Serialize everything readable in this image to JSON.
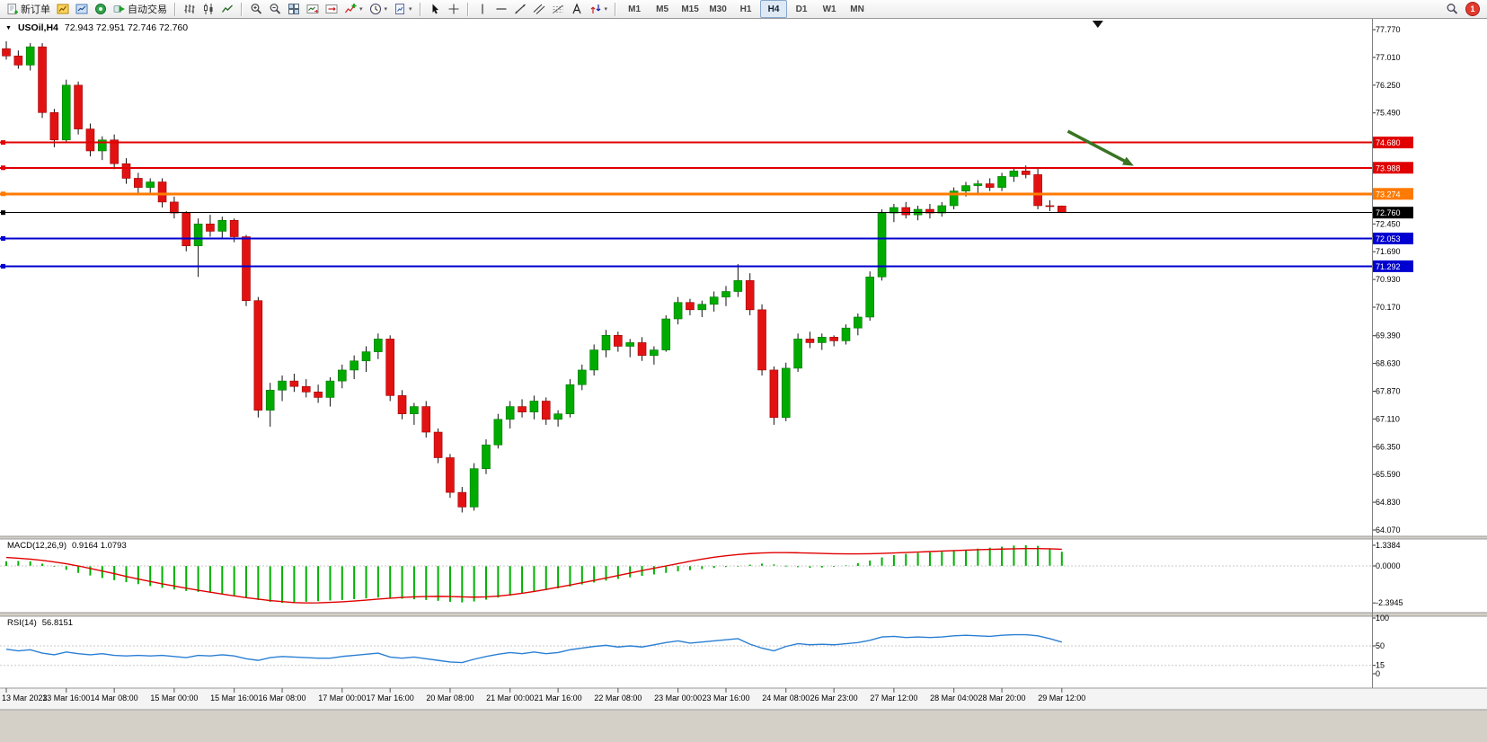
{
  "toolbar": {
    "new_order": "新订单",
    "auto_trading": "自动交易",
    "groups": [
      [
        {
          "name": "new-order-button",
          "icon": "new-order-icon",
          "label_key": "new_order"
        },
        {
          "name": "charts-button",
          "icon": "chart-window-icon"
        },
        {
          "name": "market-watch-button",
          "icon": "market-watch-icon"
        },
        {
          "name": "navigator-button",
          "icon": "navigator-icon"
        },
        {
          "name": "auto-trading-button",
          "icon": "auto-trading-icon",
          "label_key": "auto_trading"
        }
      ],
      [
        {
          "name": "bar-chart-button",
          "icon": "bar-chart-icon"
        },
        {
          "name": "candlestick-chart-button",
          "icon": "candlestick-icon"
        },
        {
          "name": "line-chart-button",
          "icon": "line-chart-icon"
        }
      ],
      [
        {
          "name": "zoom-in-button",
          "icon": "zoom-in-icon"
        },
        {
          "name": "zoom-out-button",
          "icon": "zoom-out-icon"
        },
        {
          "name": "tile-windows-button",
          "icon": "tile-windows-icon"
        },
        {
          "name": "auto-scroll-button",
          "icon": "auto-scroll-icon"
        },
        {
          "name": "chart-shift-button",
          "icon": "chart-shift-icon"
        },
        {
          "name": "indicators-button",
          "icon": "indicators-icon",
          "dropdown": true
        },
        {
          "name": "periods-button",
          "icon": "periods-icon",
          "dropdown": true
        },
        {
          "name": "templates-button",
          "icon": "templates-icon",
          "dropdown": true
        }
      ],
      [
        {
          "name": "cursor-button",
          "icon": "cursor-icon"
        },
        {
          "name": "crosshair-button",
          "icon": "crosshair-icon"
        }
      ],
      [
        {
          "name": "vertical-line-button",
          "icon": "vertical-line-icon"
        },
        {
          "name": "horizontal-line-button",
          "icon": "horizontal-line-icon"
        },
        {
          "name": "trendline-button",
          "icon": "trendline-icon"
        },
        {
          "name": "equidistant-channel-button",
          "icon": "channel-icon"
        },
        {
          "name": "fibonacci-button",
          "icon": "fibonacci-icon"
        },
        {
          "name": "text-button",
          "icon": "text-icon"
        },
        {
          "name": "arrows-button",
          "icon": "arrows-icon",
          "dropdown": true
        }
      ]
    ],
    "timeframes": [
      "M1",
      "M5",
      "M15",
      "M30",
      "H1",
      "H4",
      "D1",
      "W1",
      "MN"
    ],
    "active_timeframe": "H4",
    "badge_count": "1"
  },
  "chart": {
    "symbol_period": "USOil,H4",
    "ohlc_text": "72.943 72.951 72.746 72.760"
  },
  "macd": {
    "label": "MACD(12,26,9)",
    "values": "0.9164 1.0793",
    "ticks": [
      "1.3384",
      "0.0000",
      "-2.3945"
    ]
  },
  "rsi": {
    "label": "RSI(14)",
    "value": "56.8151",
    "ticks": [
      "100",
      "50",
      "15",
      "0"
    ]
  },
  "chart_data": {
    "type": "candlestick",
    "symbol": "USOil",
    "period": "H4",
    "title": "USOil,H4 72.943 72.951 72.746 72.760",
    "last_ohlc": {
      "open": 72.943,
      "high": 72.951,
      "low": 72.746,
      "close": 72.76
    },
    "price_range_visible": [
      64.07,
      77.97
    ],
    "price_axis_ticks": [
      "77.770",
      "77.010",
      "76.250",
      "75.490",
      "72.450",
      "71.690",
      "70.930",
      "70.170",
      "69.390",
      "68.630",
      "67.870",
      "67.110",
      "66.350",
      "65.590",
      "64.830",
      "64.070"
    ],
    "horizontal_lines": [
      {
        "label": "74.680",
        "price": 74.68,
        "color": "#E00000",
        "width": 2
      },
      {
        "label": "73.988",
        "price": 73.988,
        "color": "#E00000",
        "width": 2
      },
      {
        "label": "73.274",
        "price": 73.274,
        "color": "#FF7A00",
        "width": 3
      },
      {
        "label": "72.760",
        "price": 72.76,
        "color": "#000000",
        "width": 1
      },
      {
        "label": "72.053",
        "price": 72.053,
        "color": "#0000D0",
        "width": 2
      },
      {
        "label": "71.292",
        "price": 71.292,
        "color": "#0000D0",
        "width": 2
      }
    ],
    "candles": [
      [
        77.25,
        77.45,
        76.95,
        77.05
      ],
      [
        77.05,
        77.2,
        76.7,
        76.8
      ],
      [
        76.8,
        77.4,
        76.65,
        77.3
      ],
      [
        77.3,
        77.4,
        75.35,
        75.5
      ],
      [
        75.5,
        75.6,
        74.55,
        74.75
      ],
      [
        74.75,
        76.4,
        74.7,
        76.25
      ],
      [
        76.25,
        76.35,
        74.9,
        75.05
      ],
      [
        75.05,
        75.2,
        74.3,
        74.45
      ],
      [
        74.45,
        74.85,
        74.2,
        74.75
      ],
      [
        74.75,
        74.9,
        73.95,
        74.1
      ],
      [
        74.1,
        74.25,
        73.55,
        73.7
      ],
      [
        73.7,
        73.85,
        73.3,
        73.45
      ],
      [
        73.45,
        73.7,
        73.25,
        73.6
      ],
      [
        73.6,
        73.7,
        72.9,
        73.05
      ],
      [
        73.05,
        73.2,
        72.6,
        72.75
      ],
      [
        72.75,
        72.8,
        71.7,
        71.85
      ],
      [
        71.85,
        72.6,
        71.0,
        72.45
      ],
      [
        72.45,
        72.7,
        72.1,
        72.25
      ],
      [
        72.25,
        72.65,
        72.05,
        72.55
      ],
      [
        72.55,
        72.6,
        71.95,
        72.1
      ],
      [
        72.1,
        72.15,
        70.2,
        70.35
      ],
      [
        70.35,
        70.45,
        67.15,
        67.35
      ],
      [
        67.35,
        68.1,
        66.9,
        67.9
      ],
      [
        67.9,
        68.3,
        67.6,
        68.15
      ],
      [
        68.15,
        68.35,
        67.85,
        68.0
      ],
      [
        68.0,
        68.2,
        67.7,
        67.85
      ],
      [
        67.85,
        68.05,
        67.55,
        67.7
      ],
      [
        67.7,
        68.25,
        67.45,
        68.15
      ],
      [
        68.15,
        68.6,
        67.95,
        68.45
      ],
      [
        68.45,
        68.85,
        68.2,
        68.7
      ],
      [
        68.7,
        69.1,
        68.4,
        68.95
      ],
      [
        68.95,
        69.45,
        68.75,
        69.3
      ],
      [
        69.3,
        69.4,
        67.6,
        67.75
      ],
      [
        67.75,
        67.9,
        67.1,
        67.25
      ],
      [
        67.25,
        67.55,
        66.95,
        67.45
      ],
      [
        67.45,
        67.6,
        66.6,
        66.75
      ],
      [
        66.75,
        66.85,
        65.9,
        66.05
      ],
      [
        66.05,
        66.15,
        64.95,
        65.1
      ],
      [
        65.1,
        65.25,
        64.55,
        64.7
      ],
      [
        64.7,
        65.9,
        64.6,
        65.75
      ],
      [
        65.75,
        66.55,
        65.6,
        66.4
      ],
      [
        66.4,
        67.25,
        66.3,
        67.1
      ],
      [
        67.1,
        67.6,
        66.85,
        67.45
      ],
      [
        67.45,
        67.65,
        67.15,
        67.3
      ],
      [
        67.3,
        67.75,
        67.1,
        67.6
      ],
      [
        67.6,
        67.7,
        66.95,
        67.1
      ],
      [
        67.1,
        67.35,
        66.9,
        67.25
      ],
      [
        67.25,
        68.2,
        67.15,
        68.05
      ],
      [
        68.05,
        68.6,
        67.9,
        68.45
      ],
      [
        68.45,
        69.15,
        68.3,
        69.0
      ],
      [
        69.0,
        69.55,
        68.8,
        69.4
      ],
      [
        69.4,
        69.5,
        68.95,
        69.1
      ],
      [
        69.1,
        69.3,
        68.8,
        69.2
      ],
      [
        69.2,
        69.35,
        68.7,
        68.85
      ],
      [
        68.85,
        69.1,
        68.6,
        69.0
      ],
      [
        69.0,
        69.95,
        68.95,
        69.85
      ],
      [
        69.85,
        70.45,
        69.7,
        70.3
      ],
      [
        70.3,
        70.4,
        69.95,
        70.1
      ],
      [
        70.1,
        70.35,
        69.9,
        70.25
      ],
      [
        70.25,
        70.6,
        70.05,
        70.45
      ],
      [
        70.45,
        70.75,
        70.2,
        70.6
      ],
      [
        70.6,
        71.35,
        70.45,
        70.9
      ],
      [
        70.9,
        71.1,
        69.95,
        70.1
      ],
      [
        70.1,
        70.25,
        68.3,
        68.45
      ],
      [
        68.45,
        68.55,
        66.95,
        67.15
      ],
      [
        67.15,
        68.65,
        67.05,
        68.5
      ],
      [
        68.5,
        69.45,
        68.4,
        69.3
      ],
      [
        69.3,
        69.5,
        69.05,
        69.2
      ],
      [
        69.2,
        69.45,
        69.0,
        69.35
      ],
      [
        69.35,
        69.4,
        69.1,
        69.25
      ],
      [
        69.25,
        69.7,
        69.15,
        69.6
      ],
      [
        69.6,
        70.0,
        69.4,
        69.9
      ],
      [
        69.9,
        71.15,
        69.8,
        71.0
      ],
      [
        71.0,
        72.85,
        70.9,
        72.75
      ],
      [
        72.75,
        73.0,
        72.5,
        72.9
      ],
      [
        72.9,
        73.05,
        72.6,
        72.7
      ],
      [
        72.7,
        72.95,
        72.55,
        72.85
      ],
      [
        72.85,
        73.0,
        72.6,
        72.75
      ],
      [
        72.75,
        73.05,
        72.65,
        72.95
      ],
      [
        72.95,
        73.45,
        72.85,
        73.35
      ],
      [
        73.35,
        73.6,
        73.2,
        73.5
      ],
      [
        73.5,
        73.65,
        73.3,
        73.55
      ],
      [
        73.55,
        73.7,
        73.35,
        73.45
      ],
      [
        73.45,
        73.85,
        73.35,
        73.75
      ],
      [
        73.75,
        74.0,
        73.6,
        73.9
      ],
      [
        73.9,
        74.05,
        73.7,
        73.8
      ],
      [
        73.8,
        74.0,
        72.85,
        72.95
      ],
      [
        72.95,
        73.1,
        72.8,
        72.94
      ],
      [
        72.943,
        72.951,
        72.746,
        72.76
      ]
    ],
    "time_ticks": [
      {
        "i": 0,
        "t": "13 Mar 2023"
      },
      {
        "i": 5,
        "t": "13 Mar 16:00"
      },
      {
        "i": 9,
        "t": "14 Mar 08:00"
      },
      {
        "i": 14,
        "t": "15 Mar 00:00"
      },
      {
        "i": 19,
        "t": "15 Mar 16:00"
      },
      {
        "i": 23,
        "t": "16 Mar 08:00"
      },
      {
        "i": 28,
        "t": "17 Mar 00:00"
      },
      {
        "i": 32,
        "t": "17 Mar 16:00"
      },
      {
        "i": 37,
        "t": "20 Mar 08:00"
      },
      {
        "i": 42,
        "t": "21 Mar 00:00"
      },
      {
        "i": 46,
        "t": "21 Mar 16:00"
      },
      {
        "i": 51,
        "t": "22 Mar 08:00"
      },
      {
        "i": 56,
        "t": "23 Mar 00:00"
      },
      {
        "i": 60,
        "t": "23 Mar 16:00"
      },
      {
        "i": 65,
        "t": "24 Mar 08:00"
      },
      {
        "i": 69,
        "t": "26 Mar 23:00"
      },
      {
        "i": 74,
        "t": "27 Mar 12:00"
      },
      {
        "i": 79,
        "t": "28 Mar 04:00"
      },
      {
        "i": 83,
        "t": "28 Mar 20:00"
      },
      {
        "i": 88,
        "t": "29 Mar 12:00"
      }
    ],
    "macd_range": [
      -2.3945,
      1.3384
    ],
    "macd_hist": [
      0.3,
      0.32,
      0.3,
      0.15,
      -0.05,
      -0.25,
      -0.45,
      -0.62,
      -0.78,
      -0.92,
      -1.05,
      -1.18,
      -1.3,
      -1.42,
      -1.52,
      -1.62,
      -1.68,
      -1.74,
      -1.82,
      -1.92,
      -2.05,
      -2.2,
      -2.32,
      -2.39,
      -2.36,
      -2.32,
      -2.28,
      -2.24,
      -2.2,
      -2.15,
      -2.1,
      -2.05,
      -2.08,
      -2.12,
      -2.16,
      -2.2,
      -2.26,
      -2.32,
      -2.36,
      -2.3,
      -2.18,
      -2.05,
      -1.92,
      -1.8,
      -1.68,
      -1.56,
      -1.45,
      -1.33,
      -1.2,
      -1.07,
      -0.95,
      -0.84,
      -0.74,
      -0.64,
      -0.55,
      -0.45,
      -0.35,
      -0.27,
      -0.2,
      -0.13,
      -0.07,
      0.0,
      0.08,
      0.15,
      0.1,
      0.02,
      -0.08,
      -0.12,
      -0.1,
      -0.05,
      0.05,
      0.18,
      0.35,
      0.55,
      0.7,
      0.78,
      0.84,
      0.88,
      0.92,
      0.98,
      1.05,
      1.12,
      1.18,
      1.25,
      1.32,
      1.3384,
      1.3,
      1.1,
      0.9164
    ],
    "macd_signal": [
      0.55,
      0.5,
      0.44,
      0.36,
      0.26,
      0.14,
      0.0,
      -0.16,
      -0.33,
      -0.5,
      -0.68,
      -0.85,
      -1.01,
      -1.16,
      -1.3,
      -1.44,
      -1.57,
      -1.7,
      -1.82,
      -1.94,
      -2.05,
      -2.15,
      -2.24,
      -2.31,
      -2.37,
      -2.3945,
      -2.39,
      -2.36,
      -2.32,
      -2.27,
      -2.21,
      -2.15,
      -2.09,
      -2.04,
      -2.0,
      -1.98,
      -1.97,
      -1.98,
      -2.0,
      -2.02,
      -2.0,
      -1.95,
      -1.87,
      -1.77,
      -1.65,
      -1.52,
      -1.38,
      -1.24,
      -1.09,
      -0.94,
      -0.78,
      -0.62,
      -0.46,
      -0.3,
      -0.15,
      0.0,
      0.15,
      0.3,
      0.44,
      0.56,
      0.66,
      0.74,
      0.8,
      0.84,
      0.86,
      0.86,
      0.85,
      0.83,
      0.81,
      0.79,
      0.78,
      0.78,
      0.79,
      0.81,
      0.84,
      0.87,
      0.9,
      0.93,
      0.96,
      0.99,
      1.02,
      1.05,
      1.07,
      1.09,
      1.11,
      1.12,
      1.12,
      1.11,
      1.0793
    ],
    "rsi_range": [
      0,
      100
    ],
    "rsi_line": [
      44,
      41,
      43,
      37,
      34,
      39,
      36,
      34,
      36,
      33,
      32,
      33,
      32,
      33,
      31,
      29,
      33,
      32,
      34,
      32,
      27,
      24,
      29,
      31,
      30,
      29,
      28,
      28,
      31,
      33,
      35,
      37,
      30,
      28,
      30,
      27,
      24,
      21,
      20,
      26,
      31,
      35,
      38,
      36,
      39,
      36,
      38,
      43,
      46,
      49,
      51,
      48,
      50,
      48,
      52,
      56,
      59,
      55,
      57,
      59,
      61,
      63,
      53,
      46,
      41,
      49,
      54,
      52,
      53,
      52,
      54,
      56,
      60,
      66,
      67,
      65,
      66,
      65,
      66,
      68,
      69,
      68,
      67,
      69,
      70,
      70,
      68,
      63,
      56.8151
    ],
    "annotations": {
      "arrow": {
        "from_index": 88.5,
        "from_price": 74.99,
        "to_index": 94.0,
        "to_price": 74.04,
        "color": "#3A7423",
        "width": 3.5
      },
      "top_marker_index": 91
    },
    "colors": {
      "up": "#00AB00",
      "down": "#E31212",
      "up_border": "#007500",
      "down_border": "#9B0000",
      "wick": "#111111",
      "macd_hist": "#00B200",
      "macd_signal": "#E00000",
      "rsi_line": "#2A7FD4",
      "bg": "#FFFFFF",
      "tag_text": "#FFFFFF"
    }
  }
}
